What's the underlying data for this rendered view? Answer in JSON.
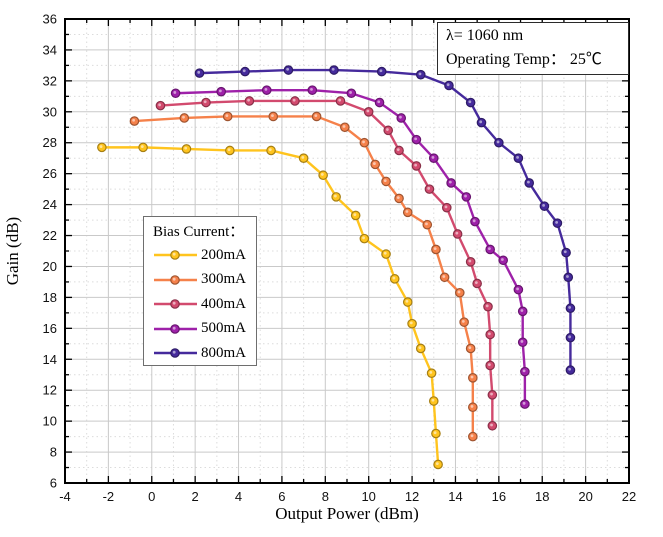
{
  "chart_data": {
    "type": "line",
    "title": "",
    "xlabel": "Output Power (dBm)",
    "ylabel": "Gain (dB)",
    "xlim": [
      -4,
      22
    ],
    "ylim": [
      6,
      36
    ],
    "x_ticks": [
      -4,
      -2,
      0,
      2,
      4,
      6,
      8,
      10,
      12,
      14,
      16,
      18,
      20,
      22
    ],
    "y_ticks": [
      6,
      8,
      10,
      12,
      14,
      16,
      18,
      20,
      22,
      24,
      26,
      28,
      30,
      32,
      34,
      36
    ],
    "minor_tick_step": 1,
    "grid": {
      "major": "solid",
      "minor": "dotted",
      "on": true
    },
    "legend_title": "Bias Current：",
    "legend_position": "middle-left",
    "annotation_line1": "λ= 1060 nm",
    "annotation_line2": "Operating Temp： 25℃",
    "series": [
      {
        "name": "200mA",
        "color": "#FFC41E",
        "points": [
          [
            -2.3,
            27.7
          ],
          [
            -0.4,
            27.7
          ],
          [
            1.6,
            27.6
          ],
          [
            3.6,
            27.5
          ],
          [
            5.5,
            27.5
          ],
          [
            7.0,
            27.0
          ],
          [
            7.9,
            25.9
          ],
          [
            8.5,
            24.5
          ],
          [
            9.4,
            23.3
          ],
          [
            9.8,
            21.8
          ],
          [
            10.8,
            20.8
          ],
          [
            11.2,
            19.2
          ],
          [
            11.8,
            17.7
          ],
          [
            12.0,
            16.3
          ],
          [
            12.4,
            14.7
          ],
          [
            12.9,
            13.1
          ],
          [
            13.0,
            11.3
          ],
          [
            13.1,
            9.2
          ],
          [
            13.2,
            7.2
          ]
        ]
      },
      {
        "name": "300mA",
        "color": "#F5814A",
        "points": [
          [
            -0.8,
            29.4
          ],
          [
            1.5,
            29.6
          ],
          [
            3.5,
            29.7
          ],
          [
            5.6,
            29.7
          ],
          [
            7.6,
            29.7
          ],
          [
            8.9,
            29.0
          ],
          [
            9.8,
            28.0
          ],
          [
            10.3,
            26.6
          ],
          [
            10.8,
            25.5
          ],
          [
            11.4,
            24.4
          ],
          [
            11.8,
            23.5
          ],
          [
            12.7,
            22.7
          ],
          [
            13.1,
            21.1
          ],
          [
            13.5,
            19.3
          ],
          [
            14.2,
            18.3
          ],
          [
            14.4,
            16.4
          ],
          [
            14.7,
            14.7
          ],
          [
            14.8,
            12.8
          ],
          [
            14.8,
            10.9
          ],
          [
            14.8,
            9.0
          ]
        ]
      },
      {
        "name": "400mA",
        "color": "#D24A6E",
        "points": [
          [
            0.4,
            30.4
          ],
          [
            2.5,
            30.6
          ],
          [
            4.5,
            30.7
          ],
          [
            6.6,
            30.7
          ],
          [
            8.7,
            30.7
          ],
          [
            10.0,
            30.0
          ],
          [
            10.9,
            28.8
          ],
          [
            11.4,
            27.5
          ],
          [
            12.2,
            26.5
          ],
          [
            12.8,
            25.0
          ],
          [
            13.6,
            23.8
          ],
          [
            14.1,
            22.1
          ],
          [
            14.7,
            20.3
          ],
          [
            15.0,
            18.9
          ],
          [
            15.5,
            17.4
          ],
          [
            15.6,
            15.6
          ],
          [
            15.6,
            13.6
          ],
          [
            15.7,
            11.7
          ],
          [
            15.7,
            9.7
          ]
        ]
      },
      {
        "name": "500mA",
        "color": "#9E21A9",
        "points": [
          [
            1.1,
            31.2
          ],
          [
            3.2,
            31.3
          ],
          [
            5.3,
            31.4
          ],
          [
            7.4,
            31.4
          ],
          [
            9.2,
            31.2
          ],
          [
            10.5,
            30.6
          ],
          [
            11.5,
            29.6
          ],
          [
            12.2,
            28.2
          ],
          [
            13.0,
            27.0
          ],
          [
            13.8,
            25.4
          ],
          [
            14.5,
            24.5
          ],
          [
            14.9,
            22.9
          ],
          [
            15.6,
            21.1
          ],
          [
            16.2,
            20.4
          ],
          [
            16.9,
            18.5
          ],
          [
            17.1,
            17.1
          ],
          [
            17.1,
            15.1
          ],
          [
            17.2,
            13.2
          ],
          [
            17.2,
            11.1
          ]
        ]
      },
      {
        "name": "800mA",
        "color": "#452A9C",
        "points": [
          [
            2.2,
            32.5
          ],
          [
            4.3,
            32.6
          ],
          [
            6.3,
            32.7
          ],
          [
            8.4,
            32.7
          ],
          [
            10.6,
            32.6
          ],
          [
            12.4,
            32.4
          ],
          [
            13.7,
            31.7
          ],
          [
            14.7,
            30.6
          ],
          [
            15.2,
            29.3
          ],
          [
            16.0,
            28.0
          ],
          [
            16.9,
            27.0
          ],
          [
            17.4,
            25.4
          ],
          [
            18.1,
            23.9
          ],
          [
            18.7,
            22.8
          ],
          [
            19.1,
            20.9
          ],
          [
            19.2,
            19.3
          ],
          [
            19.3,
            17.3
          ],
          [
            19.3,
            15.4
          ],
          [
            19.3,
            13.3
          ]
        ]
      }
    ]
  }
}
